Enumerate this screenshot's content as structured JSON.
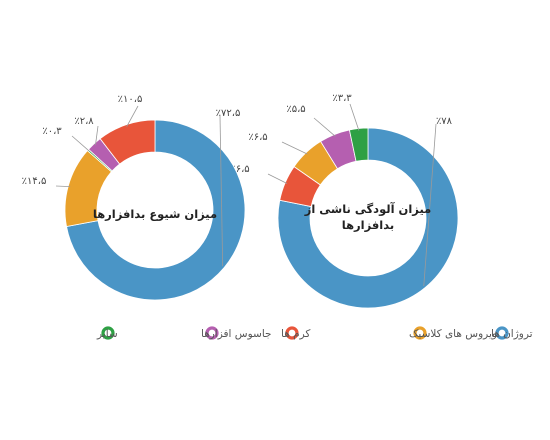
{
  "chart_data": [
    {
      "type": "pie",
      "title": "میزان آلودگی ناشی از بدافزارها",
      "title_lines": [
        "میزان آلودگی ناشی از",
        "بدافزارها"
      ],
      "slices": [
        {
          "category": "تروژان ها",
          "value": 78,
          "label": "٪۷۸"
        },
        {
          "category": "کرم ها",
          "value": 6.5,
          "label": "٪۶،۵"
        },
        {
          "category": "ویروس های کلاسیک",
          "value": 6.5,
          "label": "٪۶،۵"
        },
        {
          "category": "جاسوس افزارها",
          "value": 5.5,
          "label": "٪۵،۵"
        },
        {
          "category": "سایر",
          "value": 3.3,
          "label": "٪۳،۳"
        }
      ]
    },
    {
      "type": "pie",
      "title": "میزان شیوع بدافزارها",
      "title_lines": [
        "میزان شیوع بدافزارها"
      ],
      "slices": [
        {
          "category": "تروژان ها",
          "value": 72.5,
          "label": "٪۷۲،۵"
        },
        {
          "category": "ویروس های کلاسیک",
          "value": 14.5,
          "label": "٪۱۴،۵"
        },
        {
          "category": "سایر",
          "value": 0.3,
          "label": "٪۰،۳"
        },
        {
          "category": "جاسوس افزارها",
          "value": 2.8,
          "label": "٪۲،۸"
        },
        {
          "category": "کرم ها",
          "value": 10.5,
          "label": "٪۱۰،۵"
        }
      ]
    }
  ],
  "legend": [
    {
      "key": "trojans",
      "label": "تروژان ها",
      "color": "#4a95c6"
    },
    {
      "key": "classic-viruses",
      "label": "ویروس های کلاسیک",
      "color": "#e9a12b"
    },
    {
      "key": "worms",
      "label": "کرم ها",
      "color": "#e8553a"
    },
    {
      "key": "spyware",
      "label": "جاسوس افزارها",
      "color": "#b55fb0"
    },
    {
      "key": "other",
      "label": "سایر",
      "color": "#2ea044"
    }
  ],
  "colors": {
    "تروژان ها": "#4a95c6",
    "ویروس های کلاسیک": "#e9a12b",
    "کرم ها": "#e8553a",
    "جاسوس افزارها": "#b55fb0",
    "سایر": "#2ea044"
  }
}
